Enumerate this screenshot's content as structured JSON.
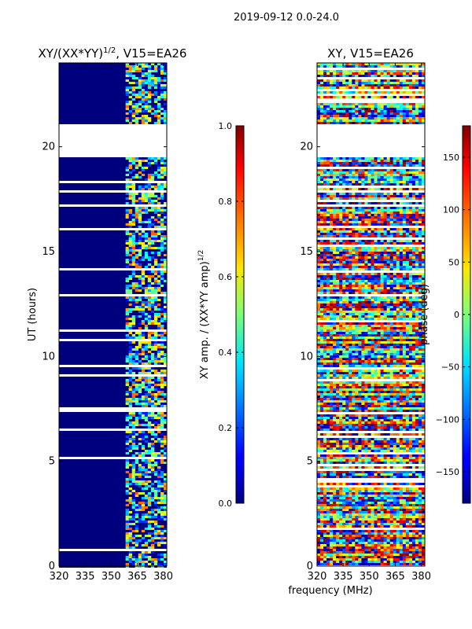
{
  "figure": {
    "suptitle": "2019-09-12 0.0-24.0",
    "xlabel_shared": "frequency (MHz)"
  },
  "chart_data": [
    {
      "type": "heatmap",
      "title_main": "XY/(XX*YY)",
      "title_sup": "1/2",
      "title_tail": ", V15=EA26",
      "ylabel": "UT (hours)",
      "x_ticks": [
        "320",
        "335",
        "350",
        "365",
        "380"
      ],
      "x_tick_values": [
        320,
        335,
        350,
        365,
        380
      ],
      "y_ticks": [
        "0",
        "5",
        "10",
        "15",
        "20"
      ],
      "y_tick_values": [
        0,
        5,
        10,
        15,
        20
      ],
      "xlim": [
        320,
        382
      ],
      "ylim": [
        0,
        24
      ],
      "data_gap_ut": [
        19.6,
        21.0
      ],
      "colorbar": {
        "label_main": "XY amp. / (XX*YY amp)",
        "label_sup": "1/2",
        "ticks": [
          "0.0",
          "0.2",
          "0.4",
          "0.6",
          "0.8",
          "1.0"
        ],
        "tick_values": [
          0.0,
          0.2,
          0.4,
          0.6,
          0.8,
          1.0
        ],
        "range": [
          0,
          1
        ]
      },
      "colormap": "jet"
    },
    {
      "type": "heatmap",
      "title": "XY, V15=EA26",
      "x_ticks": [
        "320",
        "335",
        "350",
        "365",
        "380"
      ],
      "x_tick_values": [
        320,
        335,
        350,
        365,
        380
      ],
      "y_ticks": [
        "0",
        "5",
        "10",
        "15",
        "20"
      ],
      "y_tick_values": [
        0,
        5,
        10,
        15,
        20
      ],
      "xlim": [
        320,
        382
      ],
      "ylim": [
        0,
        24
      ],
      "data_gap_ut": [
        19.6,
        21.0
      ],
      "colorbar": {
        "label": "phase (deg)",
        "ticks": [
          "150",
          "100",
          "50",
          "0",
          "−50",
          "−100",
          "−150"
        ],
        "tick_values": [
          150,
          100,
          50,
          0,
          -50,
          -100,
          -150
        ],
        "range": [
          -180,
          180
        ]
      },
      "colormap": "jet"
    }
  ]
}
